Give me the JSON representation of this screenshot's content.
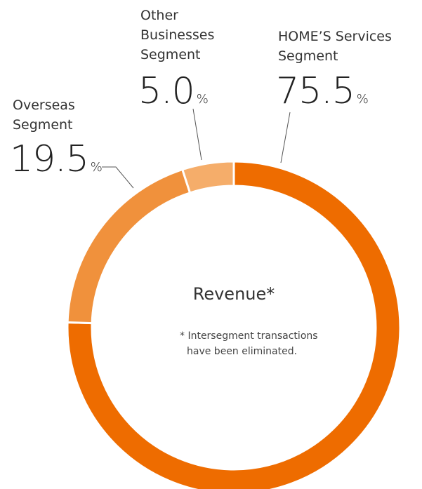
{
  "chart_data": {
    "type": "donut",
    "title": "Revenue*",
    "note": "* Intersegment transactions have been eliminated.",
    "categories": [
      "HOME’S Services Segment",
      "Overseas Segment",
      "Other Businesses Segment"
    ],
    "values": [
      75.5,
      19.5,
      5.0
    ],
    "value_labels": [
      "75.5",
      "19.5",
      "5.0"
    ],
    "unit": "%",
    "colors": [
      "#ee6c00",
      "#f0913c",
      "#f5ad6a"
    ]
  }
}
